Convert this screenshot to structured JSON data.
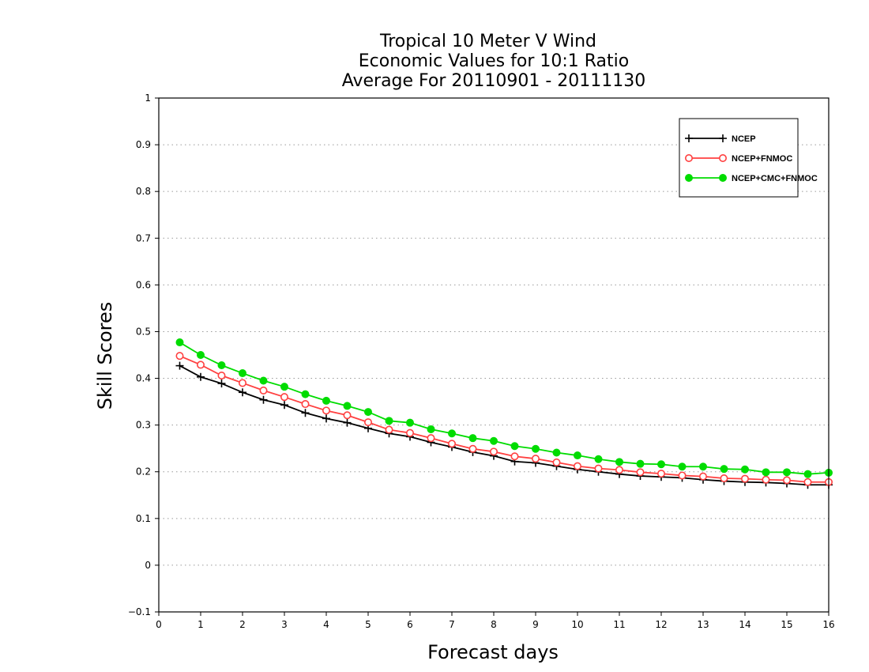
{
  "chart_data": {
    "type": "line",
    "title": [
      "Tropical 10 Meter V Wind",
      "Economic Values for 10:1 Ratio",
      "Average For 20110901 - 20111130"
    ],
    "xlabel": "Forecast days",
    "ylabel": "Skill Scores",
    "xlim": [
      0,
      16
    ],
    "ylim": [
      -0.1,
      1
    ],
    "x_ticks": [
      "0",
      "1",
      "2",
      "3",
      "4",
      "5",
      "6",
      "7",
      "8",
      "9",
      "10",
      "11",
      "12",
      "13",
      "14",
      "15",
      "16"
    ],
    "y_ticks": [
      "−0.1",
      "0",
      "0.1",
      "0.2",
      "0.3",
      "0.4",
      "0.5",
      "0.6",
      "0.7",
      "0.8",
      "0.9",
      "1"
    ],
    "grid": "horizontal dotted",
    "legend_position": "top-right",
    "x": [
      0.5,
      1,
      1.5,
      2,
      2.5,
      3,
      3.5,
      4,
      4.5,
      5,
      5.5,
      6,
      6.5,
      7,
      7.5,
      8,
      8.5,
      9,
      9.5,
      10,
      10.5,
      11,
      11.5,
      12,
      12.5,
      13,
      13.5,
      14,
      14.5,
      15,
      15.5,
      16
    ],
    "series": [
      {
        "name": "NCEP",
        "color": "#000000",
        "marker": "plus",
        "values": [
          0.427,
          0.403,
          0.389,
          0.37,
          0.354,
          0.343,
          0.326,
          0.314,
          0.305,
          0.293,
          0.282,
          0.275,
          0.263,
          0.253,
          0.242,
          0.234,
          0.222,
          0.219,
          0.212,
          0.205,
          0.2,
          0.195,
          0.191,
          0.189,
          0.187,
          0.183,
          0.18,
          0.178,
          0.177,
          0.175,
          0.172,
          0.172
        ]
      },
      {
        "name": "NCEP+FNMOC",
        "color": "#ff4040",
        "marker": "open-circle",
        "values": [
          0.448,
          0.429,
          0.406,
          0.39,
          0.374,
          0.36,
          0.345,
          0.331,
          0.321,
          0.306,
          0.29,
          0.283,
          0.272,
          0.26,
          0.249,
          0.243,
          0.233,
          0.228,
          0.22,
          0.212,
          0.207,
          0.204,
          0.199,
          0.196,
          0.192,
          0.19,
          0.186,
          0.185,
          0.183,
          0.182,
          0.178,
          0.178
        ]
      },
      {
        "name": "NCEP+CMC+FNMOC",
        "color": "#00dc00",
        "marker": "filled-circle",
        "values": [
          0.477,
          0.45,
          0.428,
          0.411,
          0.395,
          0.382,
          0.366,
          0.352,
          0.341,
          0.328,
          0.309,
          0.305,
          0.291,
          0.282,
          0.272,
          0.266,
          0.255,
          0.249,
          0.241,
          0.235,
          0.227,
          0.221,
          0.217,
          0.216,
          0.211,
          0.211,
          0.206,
          0.205,
          0.199,
          0.199,
          0.195,
          0.198
        ]
      }
    ]
  }
}
